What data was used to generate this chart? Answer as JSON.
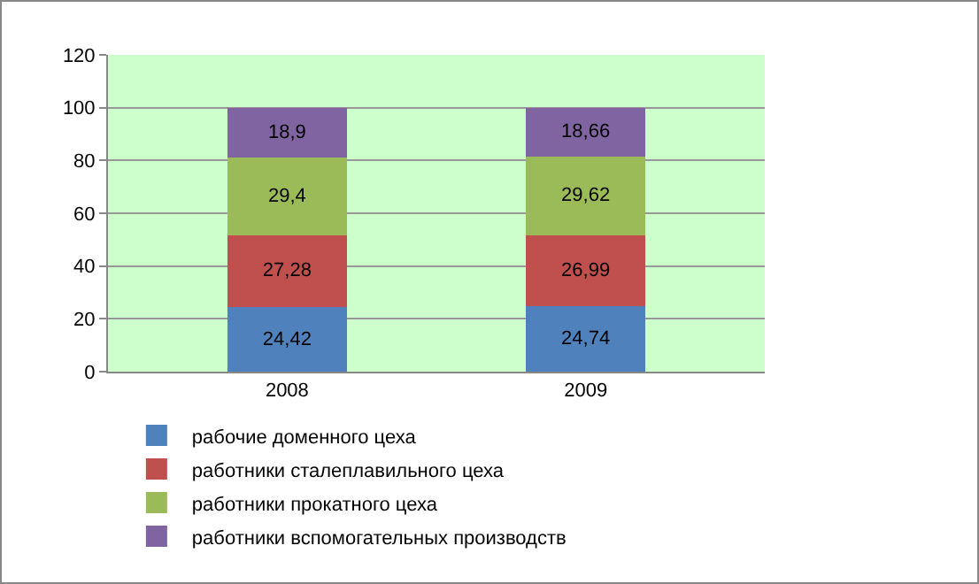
{
  "chart_data": {
    "type": "bar",
    "stacked": true,
    "categories": [
      "2008",
      "2009"
    ],
    "series": [
      {
        "name": "рабочие доменного цеха",
        "color": "#4f81bd",
        "values": [
          24.42,
          24.74
        ],
        "value_labels": [
          "24,42",
          "24,74"
        ]
      },
      {
        "name": "работники сталеплавильного цеха",
        "color": "#c0504d",
        "values": [
          27.28,
          26.99
        ],
        "value_labels": [
          "27,28",
          "26,99"
        ]
      },
      {
        "name": "работники прокатного цеха",
        "color": "#9bbb59",
        "values": [
          29.4,
          29.62
        ],
        "value_labels": [
          "29,4",
          "29,62"
        ]
      },
      {
        "name": "работники вспомогательных производств",
        "color": "#8064a2",
        "values": [
          18.9,
          18.66
        ],
        "value_labels": [
          "18,9",
          "18,66"
        ]
      }
    ],
    "ylim": [
      0,
      120
    ],
    "yticks": [
      0,
      20,
      40,
      60,
      80,
      100,
      120
    ],
    "grid": "y",
    "legend": "bottom"
  }
}
